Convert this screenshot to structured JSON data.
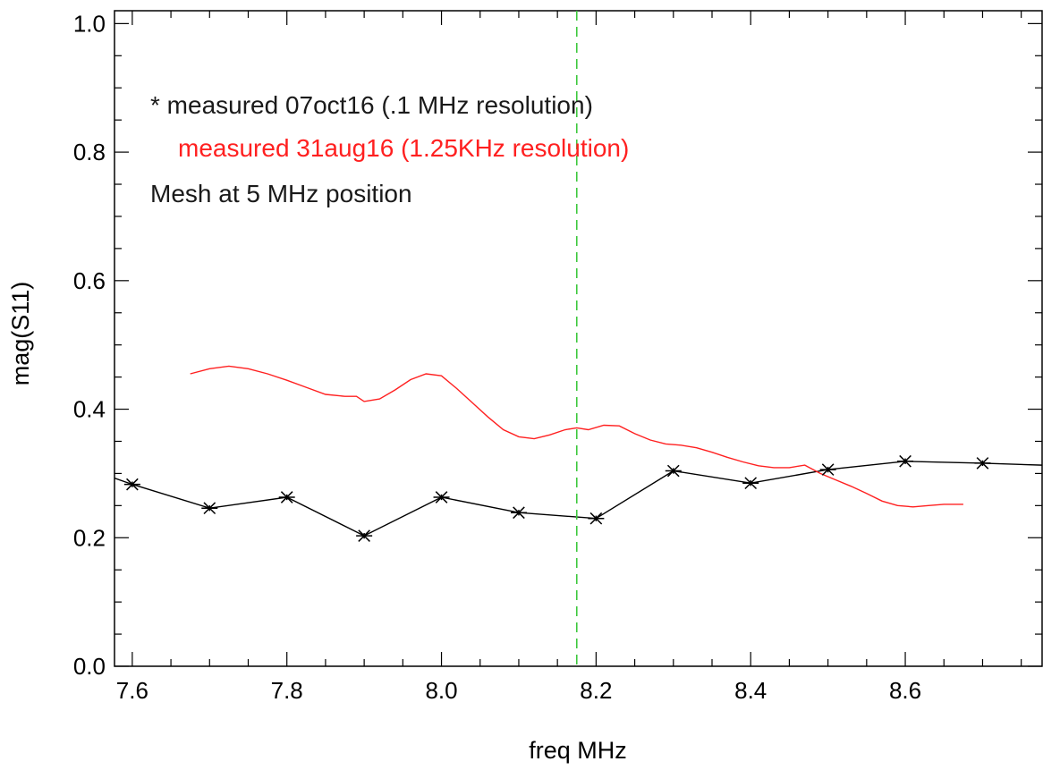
{
  "chart_data": {
    "type": "line",
    "xlabel": "freq MHz",
    "ylabel": "mag(S11)",
    "xlim": [
      7.577,
      8.777
    ],
    "ylim": [
      0.0,
      1.02
    ],
    "x_ticks": [
      "7.6",
      "7.8",
      "8.0",
      "8.2",
      "8.4",
      "8.6"
    ],
    "y_ticks": [
      "0.0",
      "0.2",
      "0.4",
      "0.6",
      "0.8",
      "1.0"
    ],
    "legend": [
      {
        "text": "* measured 07oct16 (.1 MHz resolution)",
        "color": "#1a1a1a"
      },
      {
        "text": "measured 31aug16 (1.25KHz resolution)",
        "color": "#ff2020"
      },
      {
        "text": "Mesh at 5 MHz position",
        "color": "#1a1a1a"
      }
    ],
    "vline": {
      "x": 8.175,
      "color": "#3cc83c",
      "style": "dashed"
    },
    "series": [
      {
        "color": "#000000",
        "marker": "asterisk",
        "x": [
          7.5,
          7.6,
          7.7,
          7.8,
          7.9,
          8.0,
          8.1,
          8.2,
          8.3,
          8.4,
          8.5,
          8.6,
          8.7,
          8.8
        ],
        "y": [
          0.325,
          0.283,
          0.246,
          0.263,
          0.203,
          0.263,
          0.239,
          0.23,
          0.304,
          0.285,
          0.306,
          0.319,
          0.316,
          0.312
        ],
        "marker_x": [
          7.6,
          7.7,
          7.8,
          7.9,
          8.0,
          8.1,
          8.2,
          8.3,
          8.4,
          8.5,
          8.6,
          8.7
        ]
      },
      {
        "color": "#ff2020",
        "marker": "none",
        "x": [
          7.675,
          7.7,
          7.725,
          7.75,
          7.775,
          7.8,
          7.825,
          7.85,
          7.875,
          7.89,
          7.9,
          7.92,
          7.94,
          7.96,
          7.98,
          8.0,
          8.02,
          8.04,
          8.06,
          8.08,
          8.1,
          8.12,
          8.14,
          8.16,
          8.175,
          8.19,
          8.21,
          8.23,
          8.25,
          8.27,
          8.29,
          8.31,
          8.33,
          8.35,
          8.37,
          8.39,
          8.41,
          8.43,
          8.45,
          8.47,
          8.49,
          8.51,
          8.53,
          8.55,
          8.57,
          8.59,
          8.61,
          8.63,
          8.65,
          8.675
        ],
        "y": [
          0.455,
          0.463,
          0.467,
          0.463,
          0.455,
          0.445,
          0.434,
          0.423,
          0.42,
          0.42,
          0.412,
          0.416,
          0.43,
          0.446,
          0.455,
          0.452,
          0.432,
          0.41,
          0.388,
          0.368,
          0.357,
          0.354,
          0.36,
          0.368,
          0.371,
          0.368,
          0.375,
          0.374,
          0.362,
          0.352,
          0.346,
          0.344,
          0.34,
          0.333,
          0.325,
          0.318,
          0.312,
          0.309,
          0.309,
          0.313,
          0.3,
          0.29,
          0.28,
          0.269,
          0.257,
          0.25,
          0.248,
          0.25,
          0.252,
          0.252
        ]
      }
    ]
  }
}
